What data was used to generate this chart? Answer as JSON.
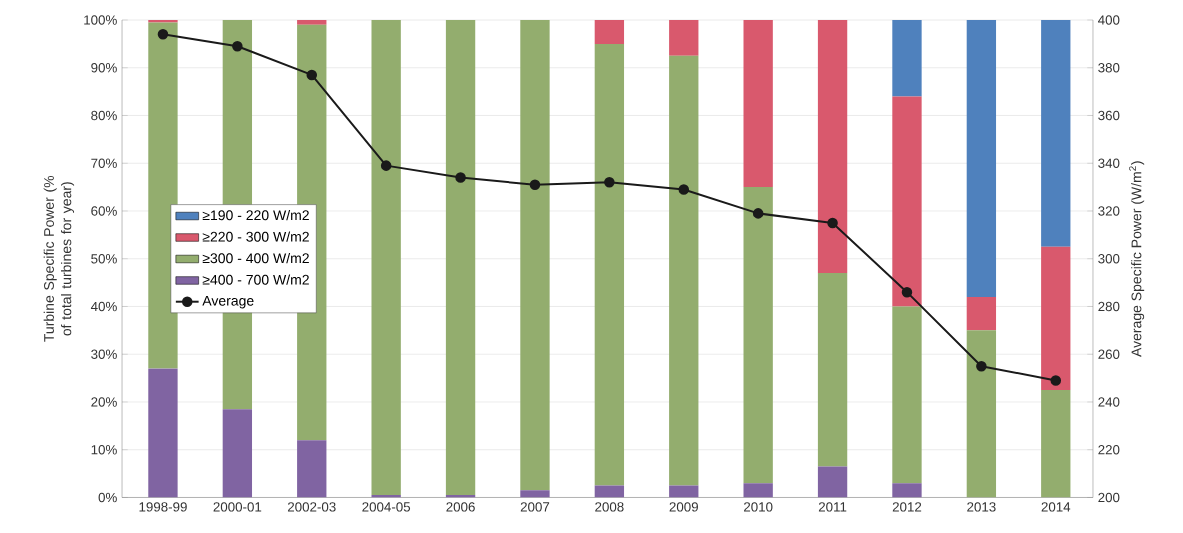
{
  "chart_data": {
    "type": "bar",
    "stacked": true,
    "categories": [
      "1998-99",
      "2000-01",
      "2002-03",
      "2004-05",
      "2006",
      "2007",
      "2008",
      "2009",
      "2010",
      "2011",
      "2012",
      "2013",
      "2014"
    ],
    "series": [
      {
        "name": "≥400 - 700 W/m2",
        "color": "#8064a2",
        "values": [
          27,
          18.5,
          12,
          0.5,
          0.5,
          1.5,
          2.5,
          2.5,
          3,
          6.5,
          3,
          0,
          0
        ]
      },
      {
        "name": "≥300 - 400 W/m2",
        "color": "#93ad6e",
        "values": [
          72.5,
          81.5,
          87,
          99.5,
          99.5,
          98.5,
          92.5,
          90,
          62,
          40.5,
          37,
          35,
          22.5
        ]
      },
      {
        "name": "≥220 - 300 W/m2",
        "color": "#d9596d",
        "values": [
          0.5,
          0,
          1,
          0,
          0,
          0,
          5,
          7.5,
          35,
          53,
          44,
          7,
          30
        ]
      },
      {
        "name": "≥190 - 220 W/m2",
        "color": "#4f81bd",
        "values": [
          0,
          0,
          0,
          0,
          0,
          0,
          0,
          0,
          0,
          0,
          16,
          58,
          47.5
        ]
      },
      {
        "name": "Average",
        "type": "line",
        "axis": "y2",
        "color": "#1a1a1a",
        "marker": "circle",
        "line_style": "solid",
        "values": [
          394,
          389,
          377,
          339,
          334,
          331,
          332,
          329,
          319,
          315,
          286,
          255,
          249
        ]
      }
    ],
    "ylabel": "Turbine Specific Power (% of total turbines for year)",
    "y2label": "Average Specific Power (W/m$^{2}$)",
    "ylim": [
      0,
      100
    ],
    "yticks": [
      {
        "value": 0,
        "label": "0%"
      },
      {
        "value": 10,
        "label": "10%"
      },
      {
        "value": 20,
        "label": "20%"
      },
      {
        "value": 30,
        "label": "30%"
      },
      {
        "value": 40,
        "label": "40%"
      },
      {
        "value": 50,
        "label": "50%"
      },
      {
        "value": 60,
        "label": "60%"
      },
      {
        "value": 70,
        "label": "70%"
      },
      {
        "value": 80,
        "label": "80%"
      },
      {
        "value": 90,
        "label": "90%"
      },
      {
        "value": 100,
        "label": "100%"
      }
    ],
    "y2lim": [
      200,
      400
    ],
    "y2ticks": [
      200,
      220,
      240,
      260,
      280,
      300,
      320,
      340,
      360,
      380,
      400
    ],
    "grid": "y",
    "legend": "left"
  }
}
